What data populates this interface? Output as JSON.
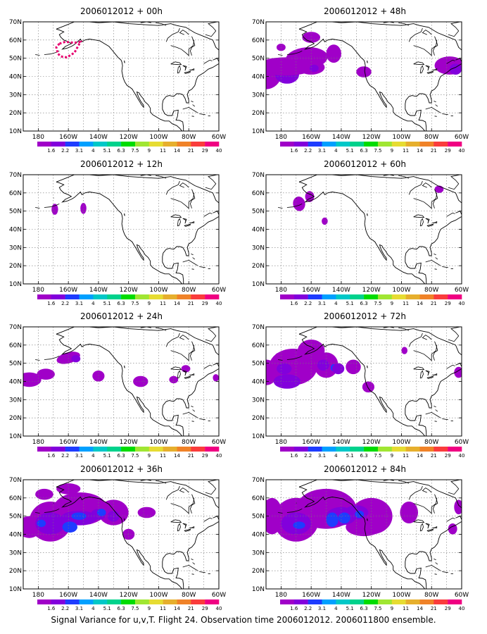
{
  "footer": "Signal Variance for u,v,T. Flight 24. Observation time 2006012012. 2006011800 ensemble.",
  "lat_labels": [
    "70N",
    "60N",
    "50N",
    "40N",
    "30N",
    "20N",
    "10N"
  ],
  "lon_labels": [
    "180",
    "160W",
    "140W",
    "120W",
    "100W",
    "80W",
    "60W"
  ],
  "colorbar_labels": [
    "1.6",
    "2.2",
    "3.1",
    "4",
    "5.1",
    "6.3",
    "7.5",
    "9",
    "11",
    "14",
    "21",
    "29",
    "40"
  ],
  "colorbar_colors": [
    "#a000c8",
    "#8200dc",
    "#1e3cff",
    "#00a0ff",
    "#00c8c8",
    "#00d28c",
    "#00dc00",
    "#a0e632",
    "#e6dc32",
    "#e6af2d",
    "#f08228",
    "#fa3c3c",
    "#f00082"
  ],
  "panels": [
    {
      "title": "2006012012 + 00h"
    },
    {
      "title": "2006012012 + 48h"
    },
    {
      "title": "2006012012 + 12h"
    },
    {
      "title": "2006012012 + 60h"
    },
    {
      "title": "2006012012 + 24h"
    },
    {
      "title": "2006012012 + 72h"
    },
    {
      "title": "2006012012 + 36h"
    },
    {
      "title": "2006012012 + 84h"
    }
  ]
}
